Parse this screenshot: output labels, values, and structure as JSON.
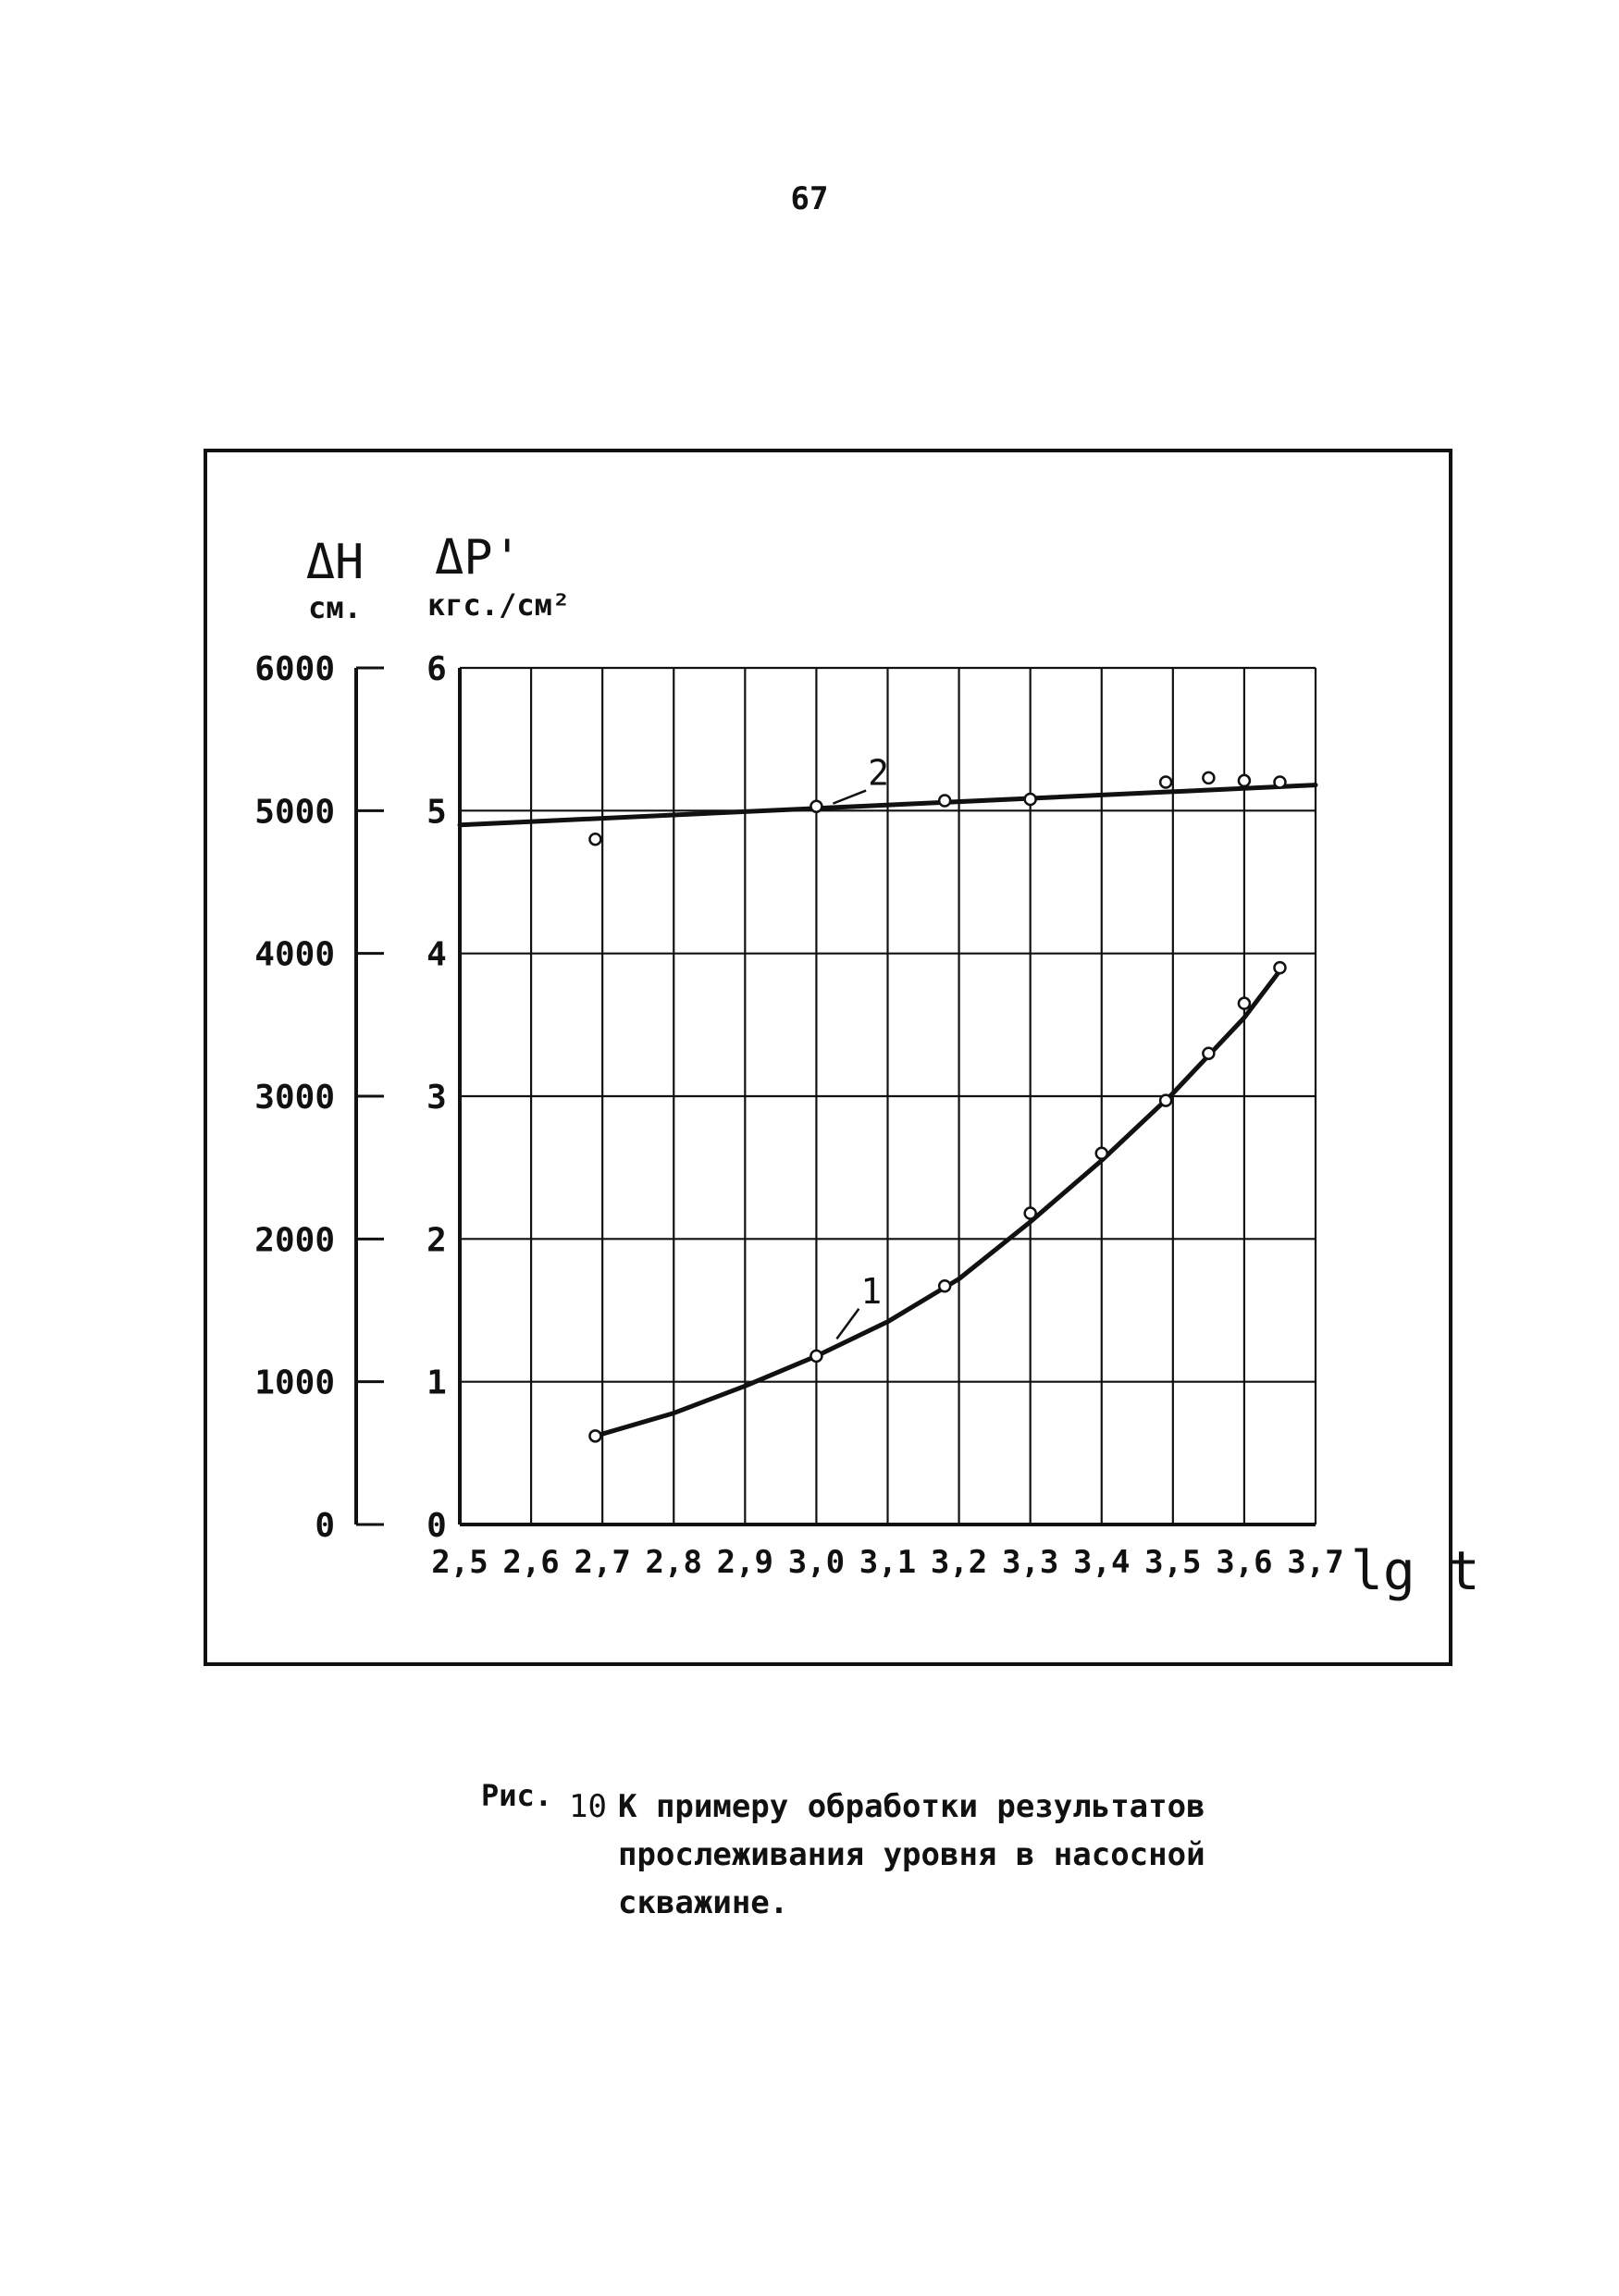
{
  "page": {
    "number": "67"
  },
  "caption": {
    "prefix": "Рис.",
    "number": "10",
    "text": "К примеру обработки результатов прослеживания уровня в насосной скважине."
  },
  "chart_data": {
    "type": "line",
    "xlabel": "lg t",
    "left_axis": {
      "symbol": "ΔH",
      "unit": "см.",
      "ticks": [
        "0",
        "1000",
        "2000",
        "3000",
        "4000",
        "5000",
        "6000"
      ],
      "ylim": [
        0,
        6000
      ]
    },
    "right_axis": {
      "symbol": "ΔP'",
      "unit": "кгс./см²",
      "ticks": [
        "0",
        "1",
        "2",
        "3",
        "4",
        "5",
        "6"
      ],
      "ylim": [
        0,
        6
      ]
    },
    "x_ticks": [
      2.5,
      2.6,
      2.7,
      2.8,
      2.9,
      3.0,
      3.1,
      3.2,
      3.3,
      3.4,
      3.5,
      3.6,
      3.7
    ],
    "x_tick_labels": [
      "2,5",
      "2,6",
      "2,7",
      "2,8",
      "2,9",
      "3,0",
      "3,1",
      "3,2",
      "3,3",
      "3,4",
      "3,5",
      "3,6",
      "3,7"
    ],
    "xlim": [
      2.5,
      3.7
    ],
    "grid": true,
    "series": [
      {
        "name": "1",
        "points": [
          [
            2.69,
            0.62
          ],
          [
            3.0,
            1.18
          ],
          [
            3.18,
            1.67
          ],
          [
            3.3,
            2.18
          ],
          [
            3.4,
            2.6
          ],
          [
            3.49,
            2.97
          ],
          [
            3.55,
            3.3
          ],
          [
            3.6,
            3.65
          ],
          [
            3.65,
            3.9
          ]
        ],
        "curve": [
          [
            2.69,
            0.62
          ],
          [
            2.8,
            0.78
          ],
          [
            2.9,
            0.97
          ],
          [
            3.0,
            1.18
          ],
          [
            3.1,
            1.42
          ],
          [
            3.2,
            1.72
          ],
          [
            3.3,
            2.12
          ],
          [
            3.4,
            2.55
          ],
          [
            3.5,
            3.02
          ],
          [
            3.6,
            3.55
          ],
          [
            3.65,
            3.88
          ]
        ]
      },
      {
        "name": "2",
        "points": [
          [
            2.69,
            4.8
          ],
          [
            3.0,
            5.03
          ],
          [
            3.18,
            5.07
          ],
          [
            3.3,
            5.08
          ],
          [
            3.49,
            5.2
          ],
          [
            3.55,
            5.23
          ],
          [
            3.6,
            5.21
          ],
          [
            3.65,
            5.2
          ]
        ],
        "curve": [
          [
            2.5,
            4.9
          ],
          [
            3.7,
            5.18
          ]
        ]
      }
    ]
  }
}
